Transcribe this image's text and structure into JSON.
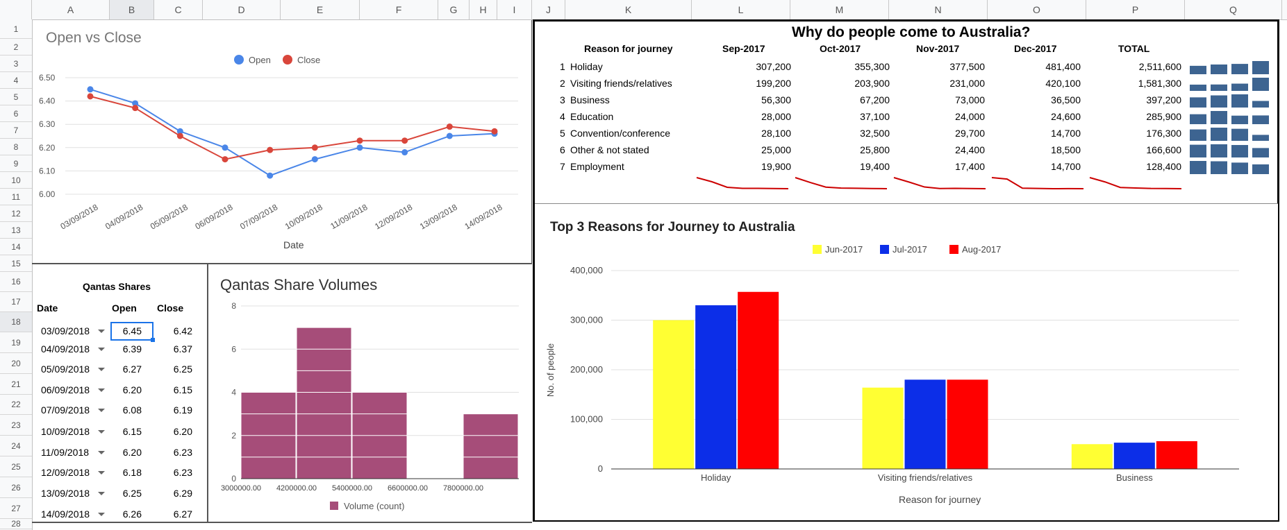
{
  "sheet": {
    "columns": [
      "A",
      "B",
      "C",
      "D",
      "E",
      "F",
      "G",
      "H",
      "I",
      "J",
      "K",
      "L",
      "M",
      "N",
      "O",
      "P",
      "Q"
    ],
    "rows": [
      "1",
      "2",
      "3",
      "4",
      "5",
      "6",
      "7",
      "8",
      "9",
      "10",
      "11",
      "12",
      "13",
      "14",
      "15",
      "16",
      "17",
      "18",
      "19",
      "20",
      "21",
      "22",
      "23",
      "24",
      "25",
      "26",
      "27",
      "28"
    ],
    "selected_column": "B",
    "selected_row": "18"
  },
  "line_chart": {
    "title": "Open vs Close",
    "xlabel": "Date",
    "legend": [
      "Open",
      "Close"
    ],
    "colors": {
      "open": "#4a86e8",
      "close": "#d9463b"
    },
    "chart_data": {
      "type": "line",
      "x": [
        "03/09/2018",
        "04/09/2018",
        "05/09/2018",
        "06/09/2018",
        "07/09/2018",
        "10/09/2018",
        "11/09/2018",
        "12/09/2018",
        "13/09/2018",
        "14/09/2018"
      ],
      "series": [
        {
          "name": "Open",
          "values": [
            6.45,
            6.39,
            6.27,
            6.2,
            6.08,
            6.15,
            6.2,
            6.18,
            6.25,
            6.26
          ]
        },
        {
          "name": "Close",
          "values": [
            6.42,
            6.37,
            6.25,
            6.15,
            6.19,
            6.2,
            6.23,
            6.23,
            6.29,
            6.27
          ]
        }
      ],
      "ylim": [
        6.0,
        6.5
      ],
      "yticks": [
        "6.00",
        "6.10",
        "6.20",
        "6.30",
        "6.40",
        "6.50"
      ]
    }
  },
  "shares_table": {
    "title": "Qantas Shares",
    "headers": [
      "Date",
      "Open",
      "Close"
    ],
    "rows": [
      [
        "03/09/2018",
        "6.45",
        "6.42"
      ],
      [
        "04/09/2018",
        "6.39",
        "6.37"
      ],
      [
        "05/09/2018",
        "6.27",
        "6.25"
      ],
      [
        "06/09/2018",
        "6.20",
        "6.15"
      ],
      [
        "07/09/2018",
        "6.08",
        "6.19"
      ],
      [
        "10/09/2018",
        "6.15",
        "6.20"
      ],
      [
        "11/09/2018",
        "6.20",
        "6.23"
      ],
      [
        "12/09/2018",
        "6.18",
        "6.23"
      ],
      [
        "13/09/2018",
        "6.25",
        "6.29"
      ],
      [
        "14/09/2018",
        "6.26",
        "6.27"
      ]
    ]
  },
  "histogram": {
    "title": "Qantas Share Volumes",
    "legend": "Volume (count)",
    "color": "#a64d79",
    "chart_data": {
      "type": "bar",
      "categories": [
        "3000000.00",
        "4200000.00",
        "5400000.00",
        "6600000.00",
        "7800000.00"
      ],
      "values": [
        4,
        7,
        4,
        0,
        3
      ],
      "xticks": [
        "3000000.00",
        "4200000.00",
        "5400000.00",
        "6600000.00",
        "7800000.00"
      ],
      "ylim": [
        0,
        8
      ],
      "yticks": [
        "0",
        "2",
        "4",
        "6",
        "8"
      ]
    }
  },
  "journey_table": {
    "title": "Why do people come to Australia?",
    "headers": [
      "Reason for journey",
      "Sep-2017",
      "Oct-2017",
      "Nov-2017",
      "Dec-2017",
      "TOTAL"
    ],
    "rows": [
      {
        "n": "1",
        "reason": "Holiday",
        "v": [
          "307,200",
          "355,300",
          "377,500",
          "481,400",
          "2,511,600"
        ],
        "spark": [
          307200,
          355300,
          377500,
          481400
        ]
      },
      {
        "n": "2",
        "reason": "Visiting friends/relatives",
        "v": [
          "199,200",
          "203,900",
          "231,000",
          "420,100",
          "1,581,300"
        ],
        "spark": [
          199200,
          203900,
          231000,
          420100
        ]
      },
      {
        "n": "3",
        "reason": "Business",
        "v": [
          "56,300",
          "67,200",
          "73,000",
          "36,500",
          "397,200"
        ],
        "spark": [
          56300,
          67200,
          73000,
          36500
        ]
      },
      {
        "n": "4",
        "reason": "Education",
        "v": [
          "28,000",
          "37,100",
          "24,000",
          "24,600",
          "285,900"
        ],
        "spark": [
          28000,
          37100,
          24000,
          24600
        ]
      },
      {
        "n": "5",
        "reason": "Convention/conference",
        "v": [
          "28,100",
          "32,500",
          "29,700",
          "14,700",
          "176,300"
        ],
        "spark": [
          28100,
          32500,
          29700,
          14700
        ]
      },
      {
        "n": "6",
        "reason": "Other & not stated",
        "v": [
          "25,000",
          "25,800",
          "24,400",
          "18,500",
          "166,600"
        ],
        "spark": [
          25000,
          25800,
          24400,
          18500
        ]
      },
      {
        "n": "7",
        "reason": "Employment",
        "v": [
          "19,900",
          "19,400",
          "17,400",
          "14,700",
          "128,400"
        ],
        "spark": [
          19900,
          19400,
          17400,
          14700
        ]
      }
    ],
    "col_sparklines": [
      [
        307200,
        199200,
        56300,
        28000,
        28100,
        25000,
        19900
      ],
      [
        355300,
        203900,
        67200,
        37100,
        32500,
        25800,
        19400
      ],
      [
        377500,
        231000,
        73000,
        24000,
        29700,
        24400,
        17400
      ],
      [
        481400,
        420100,
        36500,
        24600,
        14700,
        18500,
        14700
      ],
      [
        2511600,
        1581300,
        397200,
        285900,
        176300,
        166600,
        128400
      ]
    ],
    "spark_colors": {
      "line": "#cc0000",
      "bar": "#3d6491"
    }
  },
  "grouped_bar": {
    "title": "Top 3 Reasons for Journey to Australia",
    "xlabel": "Reason for journey",
    "ylabel": "No. of people",
    "chart_data": {
      "type": "bar",
      "categories": [
        "Holiday",
        "Visiting friends/relatives",
        "Business"
      ],
      "series": [
        {
          "name": "Jun-2017",
          "color": "#ffff33",
          "values": [
            300000,
            164000,
            50000
          ]
        },
        {
          "name": "Jul-2017",
          "color": "#0c2ee8",
          "values": [
            330000,
            180000,
            53000
          ]
        },
        {
          "name": "Aug-2017",
          "color": "#ff0000",
          "values": [
            357000,
            180000,
            56000
          ]
        }
      ],
      "ylim": [
        0,
        400000
      ],
      "yticks": [
        "0",
        "100,000",
        "200,000",
        "300,000",
        "400,000"
      ]
    }
  }
}
